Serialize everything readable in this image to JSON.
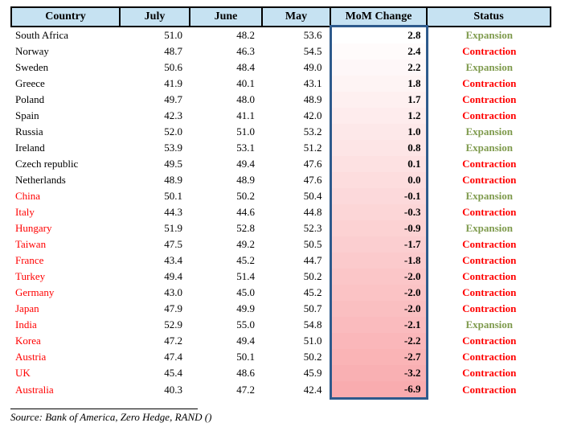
{
  "chart_data": {
    "type": "table",
    "columns": [
      "Country",
      "July",
      "June",
      "May",
      "MoM Change",
      "Status"
    ],
    "rows": [
      {
        "country": "South Africa",
        "july": "51.0",
        "june": "48.2",
        "may": "53.6",
        "mom": "2.8",
        "status": "Expansion"
      },
      {
        "country": "Norway",
        "july": "48.7",
        "june": "46.3",
        "may": "54.5",
        "mom": "2.4",
        "status": "Contraction"
      },
      {
        "country": "Sweden",
        "july": "50.6",
        "june": "48.4",
        "may": "49.0",
        "mom": "2.2",
        "status": "Expansion"
      },
      {
        "country": "Greece",
        "july": "41.9",
        "june": "40.1",
        "may": "43.1",
        "mom": "1.8",
        "status": "Contraction"
      },
      {
        "country": "Poland",
        "july": "49.7",
        "june": "48.0",
        "may": "48.9",
        "mom": "1.7",
        "status": "Contraction"
      },
      {
        "country": "Spain",
        "july": "42.3",
        "june": "41.1",
        "may": "42.0",
        "mom": "1.2",
        "status": "Contraction"
      },
      {
        "country": "Russia",
        "july": "52.0",
        "june": "51.0",
        "may": "53.2",
        "mom": "1.0",
        "status": "Expansion"
      },
      {
        "country": "Ireland",
        "july": "53.9",
        "june": "53.1",
        "may": "51.2",
        "mom": "0.8",
        "status": "Expansion"
      },
      {
        "country": "Czech republic",
        "july": "49.5",
        "june": "49.4",
        "may": "47.6",
        "mom": "0.1",
        "status": "Contraction"
      },
      {
        "country": "Netherlands",
        "july": "48.9",
        "june": "48.9",
        "may": "47.6",
        "mom": "0.0",
        "status": "Contraction"
      },
      {
        "country": "China",
        "july": "50.1",
        "june": "50.2",
        "may": "50.4",
        "mom": "-0.1",
        "status": "Expansion"
      },
      {
        "country": "Italy",
        "july": "44.3",
        "june": "44.6",
        "may": "44.8",
        "mom": "-0.3",
        "status": "Contraction"
      },
      {
        "country": "Hungary",
        "july": "51.9",
        "june": "52.8",
        "may": "52.3",
        "mom": "-0.9",
        "status": "Expansion"
      },
      {
        "country": "Taiwan",
        "july": "47.5",
        "june": "49.2",
        "may": "50.5",
        "mom": "-1.7",
        "status": "Contraction"
      },
      {
        "country": "France",
        "july": "43.4",
        "june": "45.2",
        "may": "44.7",
        "mom": "-1.8",
        "status": "Contraction"
      },
      {
        "country": "Turkey",
        "july": "49.4",
        "june": "51.4",
        "may": "50.2",
        "mom": "-2.0",
        "status": "Contraction"
      },
      {
        "country": "Germany",
        "july": "43.0",
        "june": "45.0",
        "may": "45.2",
        "mom": "-2.0",
        "status": "Contraction"
      },
      {
        "country": "Japan",
        "july": "47.9",
        "june": "49.9",
        "may": "50.7",
        "mom": "-2.0",
        "status": "Contraction"
      },
      {
        "country": "India",
        "july": "52.9",
        "june": "55.0",
        "may": "54.8",
        "mom": "-2.1",
        "status": "Expansion"
      },
      {
        "country": "Korea",
        "july": "47.2",
        "june": "49.4",
        "may": "51.0",
        "mom": "-2.2",
        "status": "Contraction"
      },
      {
        "country": "Austria",
        "july": "47.4",
        "june": "50.1",
        "may": "50.2",
        "mom": "-2.7",
        "status": "Contraction"
      },
      {
        "country": "UK",
        "july": "45.4",
        "june": "48.6",
        "may": "45.9",
        "mom": "-3.2",
        "status": "Contraction"
      },
      {
        "country": "Australia",
        "july": "40.3",
        "june": "47.2",
        "may": "42.4",
        "mom": "-6.9",
        "status": "Contraction"
      }
    ],
    "source_note": "Source: Bank of America, Zero Hedge, RAND ()",
    "layout_hints": {
      "mom_column_highlighted": true,
      "mom_gradient": "white at top to pink at bottom",
      "negative_mom_country_names_red": true
    }
  },
  "colors": {
    "header_bg": "#C6E2F2",
    "selection_border": "#2E5A8C",
    "expansion": "#7E9A4C",
    "contraction": "#FF0000",
    "negative_country": "#FF0000",
    "mom_gradient_top": "#FFFFFF",
    "mom_gradient_bottom": "#F9ACAF"
  }
}
